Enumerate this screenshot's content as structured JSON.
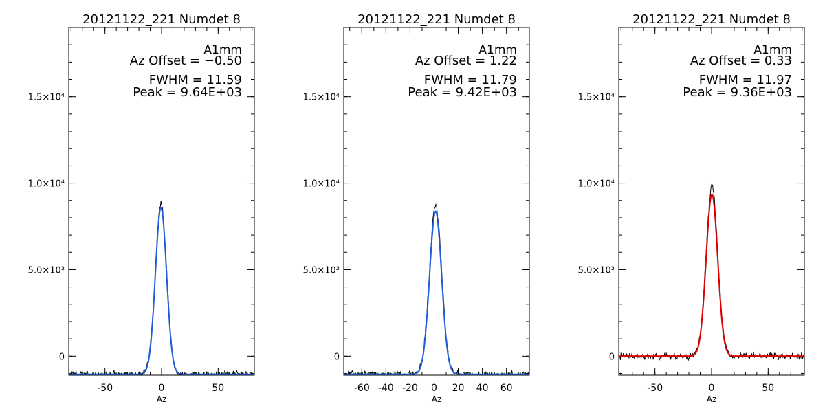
{
  "chart_data": [
    {
      "type": "line",
      "title": "20121122_221 Numdet 8",
      "xlabel": "Az",
      "ylabel": "",
      "xlim": [
        -82,
        82
      ],
      "ylim": [
        -1100,
        19000
      ],
      "xticks": [
        -50,
        0,
        50
      ],
      "yticks": [
        0,
        5000,
        10000,
        15000
      ],
      "ytick_labels": [
        "0",
        "5.0×10³",
        "1.0×10⁴",
        "1.5×10⁴"
      ],
      "annotation_color": "#000000",
      "annotations": {
        "detector": "A1mm",
        "az_offset": "Az Offset = −0.50",
        "fwhm": "FWHM = 11.59",
        "peak": "Peak = 9.64E+03"
      },
      "fit": {
        "center": -0.5,
        "fwhm": 11.59,
        "amplitude": 9640,
        "baseline": -1050,
        "color": "#1f5fdc"
      },
      "data": {
        "center": -0.5,
        "fwhm": 11.8,
        "amplitude": 9900,
        "baseline": -1050,
        "noise": 90,
        "color": "#000000"
      }
    },
    {
      "type": "line",
      "title": "20121122_221 Numdet 8",
      "xlabel": "Az",
      "ylabel": "",
      "xlim": [
        -75,
        79
      ],
      "ylim": [
        -1100,
        19000
      ],
      "xticks": [
        -60,
        -40,
        -20,
        0,
        20,
        40,
        60
      ],
      "yticks": [
        0,
        5000,
        10000,
        15000
      ],
      "ytick_labels": [
        "0",
        "5.0×10³",
        "1.0×10⁴",
        "1.5×10⁴"
      ],
      "annotation_color": "#000000",
      "annotations": {
        "detector": "A1mm",
        "az_offset": "Az Offset = 1.22",
        "fwhm": "FWHM = 11.79",
        "peak": "Peak = 9.42E+03"
      },
      "fit": {
        "center": 1.22,
        "fwhm": 11.79,
        "amplitude": 9420,
        "baseline": -1050,
        "color": "#1f5fdc"
      },
      "data": {
        "center": 1.22,
        "fwhm": 12.0,
        "amplitude": 9800,
        "baseline": -1050,
        "noise": 90,
        "color": "#000000"
      }
    },
    {
      "type": "line",
      "title": "20121122_221 Numdet 8",
      "xlabel": "Az",
      "ylabel": "",
      "xlim": [
        -82,
        82
      ],
      "ylim": [
        -1100,
        19000
      ],
      "xticks": [
        -50,
        0,
        50
      ],
      "yticks": [
        0,
        5000,
        10000,
        15000
      ],
      "ytick_labels": [
        "0",
        "5.0×10³",
        "1.0×10⁴",
        "1.5×10⁴"
      ],
      "annotation_color": "#e00000",
      "annotations": {
        "detector": "A1mm",
        "az_offset": "Az Offset = 0.33",
        "fwhm": "FWHM = 11.97",
        "peak": "Peak = 9.36E+03"
      },
      "fit": {
        "center": 0.33,
        "fwhm": 11.97,
        "amplitude": 9360,
        "baseline": 0,
        "color": "#e00000"
      },
      "data": {
        "center": 0.33,
        "fwhm": 12.2,
        "amplitude": 9800,
        "baseline": 0,
        "noise": 90,
        "color": "#000000"
      }
    }
  ]
}
